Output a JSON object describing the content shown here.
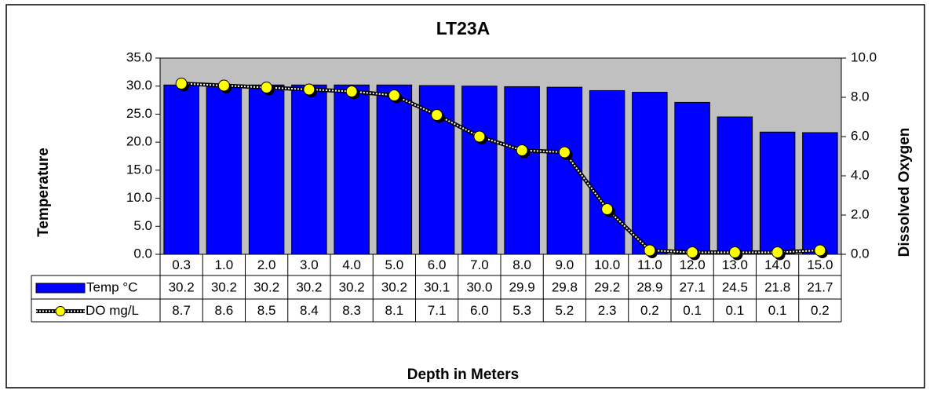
{
  "chart_data": {
    "type": "bar-line",
    "title": "LT23A",
    "x_label": "Depth in Meters",
    "y_label": "Temperature",
    "y2_label": "Dissolved Oxygen",
    "categories": [
      "0.3",
      "1.0",
      "2.0",
      "3.0",
      "4.0",
      "5.0",
      "6.0",
      "7.0",
      "8.0",
      "9.0",
      "10.0",
      "11.0",
      "12.0",
      "13.0",
      "14.0",
      "15.0"
    ],
    "series": [
      {
        "name": "Temp °C",
        "color": "#0000ff",
        "type": "bar",
        "values": [
          30.2,
          30.2,
          30.2,
          30.2,
          30.2,
          30.2,
          30.1,
          30.0,
          29.9,
          29.8,
          29.2,
          28.9,
          27.1,
          24.5,
          21.8,
          21.7
        ],
        "value_labels": [
          "30.2",
          "30.2",
          "30.2",
          "30.2",
          "30.2",
          "30.2",
          "30.1",
          "30.0",
          "29.9",
          "29.8",
          "29.2",
          "28.9",
          "27.1",
          "24.5",
          "21.8",
          "21.7"
        ]
      },
      {
        "name": "DO mg/L",
        "color": "#000000",
        "marker_color": "#ffff00",
        "type": "line",
        "axis": "y2",
        "values": [
          8.7,
          8.6,
          8.5,
          8.4,
          8.3,
          8.1,
          7.1,
          6.0,
          5.3,
          5.2,
          2.3,
          0.2,
          0.1,
          0.1,
          0.1,
          0.2
        ],
        "value_labels": [
          "8.7",
          "8.6",
          "8.5",
          "8.4",
          "8.3",
          "8.1",
          "7.1",
          "6.0",
          "5.3",
          "5.2",
          "2.3",
          "0.2",
          "0.1",
          "0.1",
          "0.1",
          "0.2"
        ]
      }
    ],
    "ylim": [
      0,
      35
    ],
    "yticks": [
      {
        "value": 0,
        "label": "0.0"
      },
      {
        "value": 5,
        "label": "5.0"
      },
      {
        "value": 10,
        "label": "10.0"
      },
      {
        "value": 15,
        "label": "15.0"
      },
      {
        "value": 20,
        "label": "20.0"
      },
      {
        "value": 25,
        "label": "25.0"
      },
      {
        "value": 30,
        "label": "30.0"
      },
      {
        "value": 35,
        "label": "35.0"
      }
    ],
    "y2lim": [
      0,
      10
    ],
    "y2ticks": [
      {
        "value": 0,
        "label": "0.0"
      },
      {
        "value": 2,
        "label": "2.0"
      },
      {
        "value": 4,
        "label": "4.0"
      },
      {
        "value": 6,
        "label": "6.0"
      },
      {
        "value": 8,
        "label": "8.0"
      },
      {
        "value": 10,
        "label": "10.0"
      }
    ],
    "plot_background": "#c0c0c0",
    "grid": false
  }
}
